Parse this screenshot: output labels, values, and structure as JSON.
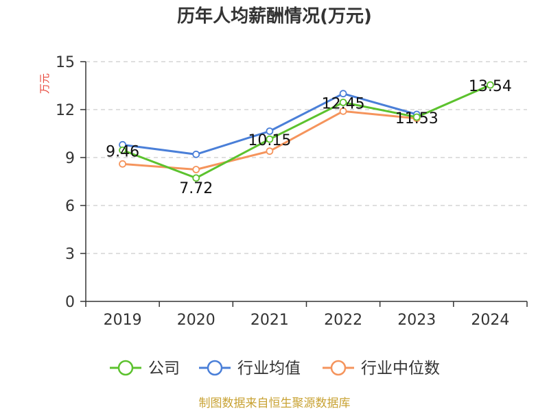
{
  "chart_data": {
    "type": "line",
    "title": "历年人均薪酬情况(万元)",
    "ylabel": "万元",
    "xlabel": "",
    "categories": [
      "2019",
      "2020",
      "2021",
      "2022",
      "2023",
      "2024"
    ],
    "ylim": [
      0,
      15
    ],
    "yticks": [
      "0",
      "3",
      "6",
      "9",
      "12",
      "15"
    ],
    "grid": "horizontal-dashed",
    "legend_position": "bottom-center",
    "series": [
      {
        "name": "公司",
        "color": "#5cc22e",
        "values": [
          9.46,
          7.72,
          10.15,
          12.45,
          11.53,
          13.54
        ],
        "labels": [
          "9.46",
          "7.72",
          "10.15",
          "12.45",
          "11.53",
          "13.54"
        ]
      },
      {
        "name": "行业均值",
        "color": "#4a7fd8",
        "values": [
          9.8,
          9.2,
          10.65,
          13.0,
          11.7,
          null
        ]
      },
      {
        "name": "行业中位数",
        "color": "#f5945c",
        "values": [
          8.6,
          8.25,
          9.4,
          11.9,
          11.45,
          null
        ]
      }
    ]
  },
  "footer": "制图数据来自恒生聚源数据库"
}
